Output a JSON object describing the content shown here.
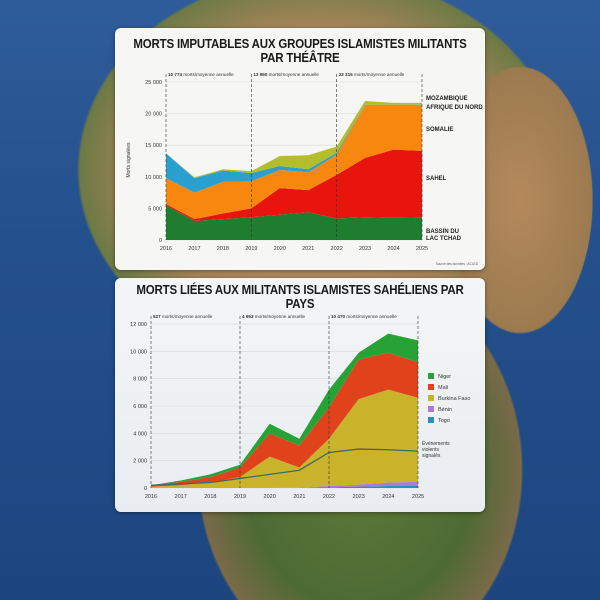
{
  "chart_data": [
    {
      "type": "area",
      "stacked": true,
      "title": "MORTS IMPUTABLES AUX GROUPES ISLAMISTES MILITANTS PAR THÉÂTRE",
      "ylabel": "Morts signalées",
      "xlabel": "",
      "x": [
        "2016",
        "2017",
        "2018",
        "2019",
        "2020",
        "2021",
        "2022",
        "2023",
        "2024",
        "2025"
      ],
      "ylim": [
        0,
        25000
      ],
      "yticks": [
        "0",
        "5 000",
        "10 000",
        "15 000",
        "20 000",
        "25 000"
      ],
      "grid": true,
      "series": [
        {
          "name": "BASSIN DU LAC TCHAD",
          "color": "#1e7d2e",
          "values": [
            5500,
            3000,
            3300,
            3600,
            4000,
            4400,
            3400,
            3600,
            3500,
            3600
          ]
        },
        {
          "name": "SAHEL",
          "color": "#e8150f",
          "values": [
            200,
            300,
            900,
            1400,
            4200,
            3500,
            6900,
            9400,
            10800,
            10500
          ]
        },
        {
          "name": "SOMALIE",
          "color": "#f7870f",
          "values": [
            4100,
            4200,
            5000,
            4300,
            2900,
            2800,
            3200,
            8300,
            7000,
            7200
          ]
        },
        {
          "name": "AFRIQUE DU NORD",
          "color": "#2aa0d0",
          "values": [
            3900,
            2300,
            1800,
            1300,
            600,
            500,
            300,
            100,
            100,
            100
          ]
        },
        {
          "name": "MOZAMBIQUE",
          "color": "#b5be2a",
          "values": [
            0,
            100,
            200,
            300,
            1600,
            2200,
            1000,
            600,
            300,
            300
          ]
        }
      ],
      "period_annotations": [
        {
          "value": "10 774",
          "text": "morts/moyenne annuelle"
        },
        {
          "value": "13 950",
          "text": "morts/moyenne annuelle"
        },
        {
          "value": "22 315",
          "text": "morts/moyenne annuelle"
        }
      ],
      "period_dividers": [
        "2016",
        "2019",
        "2022",
        "2025"
      ],
      "source": "Source des données : ACLED"
    },
    {
      "type": "area",
      "stacked": true,
      "title": "MORTS LIÉES AUX MILITANTS ISLAMISTES SAHÉLIENS PAR PAYS",
      "xlabel": "",
      "ylabel": "",
      "x": [
        "2016",
        "2017",
        "2018",
        "2019",
        "2020",
        "2021",
        "2022",
        "2023",
        "2024",
        "2025"
      ],
      "ylim": [
        0,
        12000
      ],
      "yticks": [
        "0",
        "2 000",
        "4 000",
        "6 000",
        "8 000",
        "10 000",
        "12 000"
      ],
      "grid": true,
      "legend": "right",
      "series": [
        {
          "name": "Togo",
          "color": "#2b8fb8",
          "values": [
            0,
            0,
            0,
            0,
            0,
            0,
            50,
            100,
            150,
            150
          ]
        },
        {
          "name": "Bénin",
          "color": "#b07ad0",
          "values": [
            0,
            0,
            0,
            0,
            0,
            20,
            100,
            150,
            250,
            300
          ]
        },
        {
          "name": "Burkina Faso",
          "color": "#c9b32a",
          "values": [
            100,
            200,
            400,
            800,
            2300,
            1480,
            3450,
            6250,
            6800,
            6150
          ]
        },
        {
          "name": "Mali",
          "color": "#e0431c",
          "values": [
            100,
            250,
            400,
            700,
            1700,
            1600,
            2300,
            2900,
            2700,
            2600
          ]
        },
        {
          "name": "Niger",
          "color": "#27a236",
          "values": [
            0,
            100,
            200,
            200,
            700,
            500,
            1300,
            500,
            1400,
            1600
          ]
        }
      ],
      "line_series": {
        "name": "Événements violents signalés",
        "color": "#3f6b5a",
        "values": [
          200,
          300,
          400,
          700,
          1000,
          1300,
          2600,
          2850,
          2800,
          2700
        ]
      },
      "period_annotations": [
        {
          "value": "527",
          "text": "morts/moyenne annuelle"
        },
        {
          "value": "4 953",
          "text": "morts/moyenne annuelle"
        },
        {
          "value": "10 470",
          "text": "morts/moyenne annuelle"
        }
      ],
      "period_dividers": [
        "2016",
        "2019",
        "2022",
        "2025"
      ]
    }
  ]
}
